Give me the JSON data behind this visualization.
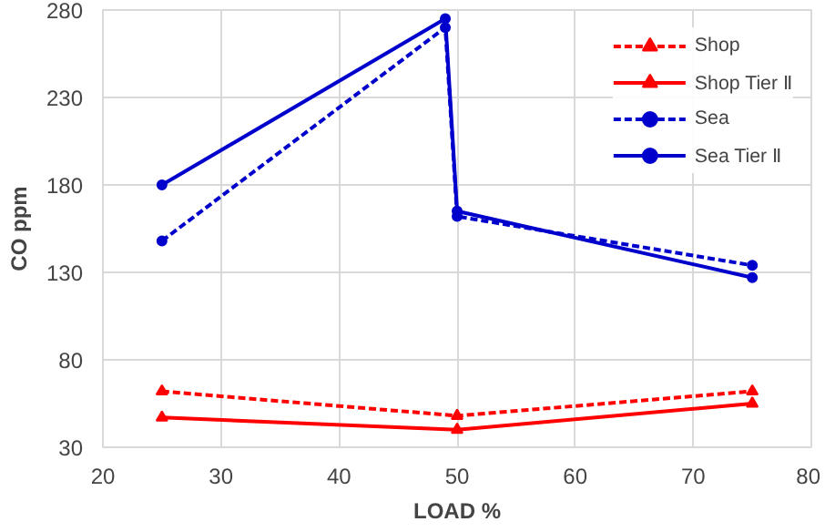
{
  "chart_data": {
    "type": "line",
    "xlabel": "LOAD %",
    "ylabel": "CO ppm",
    "xlim": [
      20,
      80
    ],
    "xticks": [
      20,
      30,
      40,
      50,
      60,
      70,
      80
    ],
    "ylim": [
      30,
      280
    ],
    "yticks": [
      30,
      80,
      130,
      180,
      230,
      280
    ],
    "grid": true,
    "legend": "top right",
    "series": [
      {
        "name": "Shop",
        "color": "#ff0000",
        "marker": "triangle",
        "line_style": "dashed",
        "x": [
          25,
          50,
          75
        ],
        "values": [
          62,
          48,
          62
        ]
      },
      {
        "name": "Shop Tier Ⅱ",
        "color": "#ff0000",
        "marker": "triangle",
        "line_style": "solid",
        "x": [
          25,
          50,
          75
        ],
        "values": [
          47,
          40,
          55
        ]
      },
      {
        "name": "Sea",
        "color": "#0000cc",
        "marker": "circle",
        "line_style": "dashed",
        "x": [
          25,
          49,
          50,
          75
        ],
        "values": [
          148,
          270,
          162,
          134
        ]
      },
      {
        "name": "Sea Tier Ⅱ",
        "color": "#0000cc",
        "marker": "circle",
        "line_style": "solid",
        "x": [
          25,
          49,
          50,
          75
        ],
        "values": [
          180,
          275,
          165,
          127
        ]
      }
    ]
  }
}
